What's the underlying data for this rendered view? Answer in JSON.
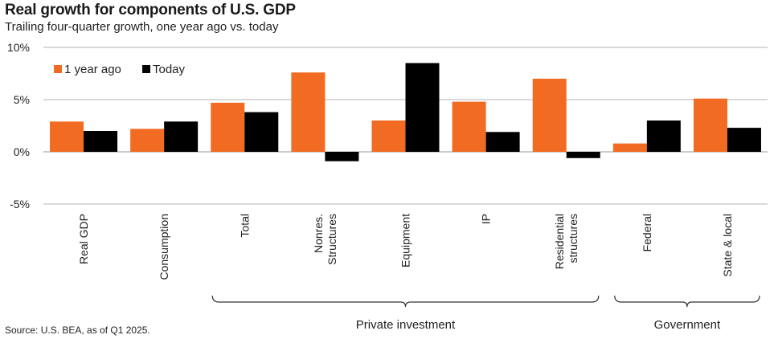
{
  "title": "Real growth for components of U.S. GDP",
  "subtitle": "Trailing four-quarter growth, one year ago vs. today",
  "source": "Source: U.S. BEA, as of Q1 2025.",
  "colors": {
    "year_ago": "#f26b22",
    "today": "#000000",
    "axis": "#555555"
  },
  "chart_data": {
    "type": "bar",
    "title": "Real growth for components of U.S. GDP",
    "subtitle": "Trailing four-quarter growth, one year ago vs. today",
    "categories": [
      "Real GDP",
      "Consumption",
      "Total",
      "Nonres.\nStructures",
      "Equipment",
      "IP",
      "Residential\nstructures",
      "Federal",
      "State & local"
    ],
    "series": [
      {
        "name": "1 year ago",
        "values": [
          2.9,
          2.2,
          4.7,
          7.6,
          3.0,
          4.8,
          7.0,
          0.8,
          5.1
        ]
      },
      {
        "name": "Today",
        "values": [
          2.0,
          2.9,
          3.8,
          -0.9,
          8.5,
          1.9,
          -0.6,
          3.0,
          2.3
        ]
      }
    ],
    "ylim": [
      -5,
      10
    ],
    "yticks": [
      "-5%",
      "0%",
      "5%",
      "10%"
    ],
    "ytick_values": [
      -5,
      0,
      5,
      10
    ],
    "grid": true,
    "legend": "top-left",
    "groups": [
      {
        "label": "Private investment",
        "categories": [
          "Total",
          "Nonres.\nStructures",
          "Equipment",
          "IP",
          "Residential\nstructures"
        ]
      },
      {
        "label": "Government",
        "categories": [
          "Federal",
          "State & local"
        ]
      }
    ]
  }
}
